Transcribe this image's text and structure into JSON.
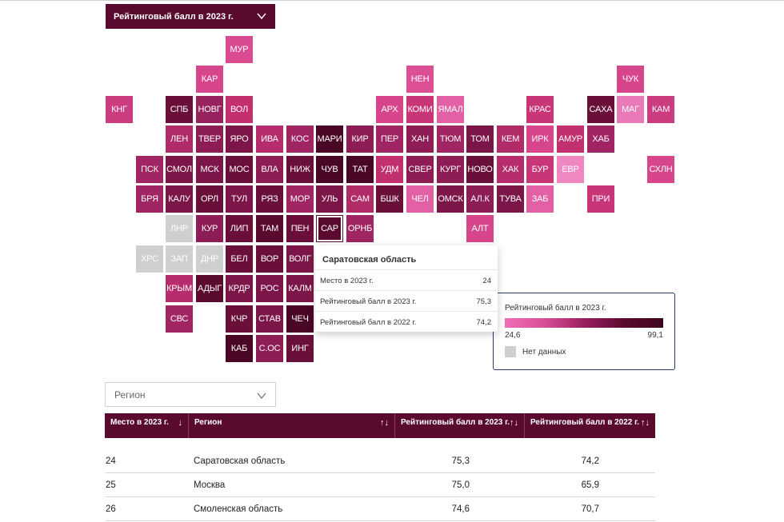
{
  "metric_select": {
    "label": "Рейтинговый балл в 2023 г.",
    "icon": "chevron-down-icon"
  },
  "tiles": [
    {
      "code": "МУР",
      "row": 0,
      "col": 4,
      "color": "#d94a90"
    },
    {
      "code": "КАР",
      "row": 1,
      "col": 3,
      "color": "#d7468b"
    },
    {
      "code": "НЕН",
      "row": 1,
      "col": 10,
      "color": "#dc4f95"
    },
    {
      "code": "ЧУК",
      "row": 1,
      "col": 17,
      "color": "#d7468b"
    },
    {
      "code": "КНГ",
      "row": 2,
      "col": 0,
      "color": "#cc3d80"
    },
    {
      "code": "СПБ",
      "row": 2,
      "col": 2,
      "color": "#6a0f3a"
    },
    {
      "code": "НОВГ",
      "row": 2,
      "col": 3,
      "color": "#98225d"
    },
    {
      "code": "ВОЛ",
      "row": 2,
      "col": 4,
      "color": "#c2306f"
    },
    {
      "code": "АРХ",
      "row": 2,
      "col": 9,
      "color": "#d7468b"
    },
    {
      "code": "КОМИ",
      "row": 2,
      "col": 10,
      "color": "#c83677"
    },
    {
      "code": "ЯМАЛ",
      "row": 2,
      "col": 11,
      "color": "#e261a5"
    },
    {
      "code": "КРАС",
      "row": 2,
      "col": 14,
      "color": "#c83677"
    },
    {
      "code": "САХА",
      "row": 2,
      "col": 16,
      "color": "#6a0f3a"
    },
    {
      "code": "МАГ",
      "row": 2,
      "col": 17,
      "color": "#e97ab7"
    },
    {
      "code": "КАМ",
      "row": 2,
      "col": 18,
      "color": "#cc3d80"
    },
    {
      "code": "ЛЕН",
      "row": 3,
      "col": 2,
      "color": "#b02b68"
    },
    {
      "code": "ТВЕР",
      "row": 3,
      "col": 3,
      "color": "#8e1d55"
    },
    {
      "code": "ЯРО",
      "row": 3,
      "col": 4,
      "color": "#7d1648"
    },
    {
      "code": "ИВА",
      "row": 3,
      "col": 5,
      "color": "#b72c6c"
    },
    {
      "code": "КОС",
      "row": 3,
      "col": 6,
      "color": "#a02562"
    },
    {
      "code": "МАРИ",
      "row": 3,
      "col": 7,
      "color": "#4a0625"
    },
    {
      "code": "КИР",
      "row": 3,
      "col": 8,
      "color": "#8e1d55"
    },
    {
      "code": "ПЕР",
      "row": 3,
      "col": 9,
      "color": "#a02562"
    },
    {
      "code": "ХАН",
      "row": 3,
      "col": 10,
      "color": "#8e1d55"
    },
    {
      "code": "ТЮМ",
      "row": 3,
      "col": 11,
      "color": "#a02562"
    },
    {
      "code": "ТОМ",
      "row": 3,
      "col": 12,
      "color": "#7d1648"
    },
    {
      "code": "КЕМ",
      "row": 3,
      "col": 13,
      "color": "#b02b68"
    },
    {
      "code": "ИРК",
      "row": 3,
      "col": 14,
      "color": "#d7468b"
    },
    {
      "code": "АМУР",
      "row": 3,
      "col": 15,
      "color": "#c2306f"
    },
    {
      "code": "ХАБ",
      "row": 3,
      "col": 16,
      "color": "#a02562"
    },
    {
      "code": "ПСК",
      "row": 4,
      "col": 1,
      "color": "#a02562"
    },
    {
      "code": "СМОЛ",
      "row": 4,
      "col": 2,
      "color": "#7d1648"
    },
    {
      "code": "МСК",
      "row": 4,
      "col": 3,
      "color": "#7d1648"
    },
    {
      "code": "МОС",
      "row": 4,
      "col": 4,
      "color": "#6a0f3a"
    },
    {
      "code": "ВЛА",
      "row": 4,
      "col": 5,
      "color": "#8e1d55"
    },
    {
      "code": "НИЖ",
      "row": 4,
      "col": 6,
      "color": "#6a0f3a"
    },
    {
      "code": "ЧУВ",
      "row": 4,
      "col": 7,
      "color": "#4a0625"
    },
    {
      "code": "ТАТ",
      "row": 4,
      "col": 8,
      "color": "#4a0625"
    },
    {
      "code": "УДМ",
      "row": 4,
      "col": 9,
      "color": "#c2306f"
    },
    {
      "code": "СВЕР",
      "row": 4,
      "col": 10,
      "color": "#8e1d55"
    },
    {
      "code": "КУРГ",
      "row": 4,
      "col": 11,
      "color": "#8e1d55"
    },
    {
      "code": "НОВО",
      "row": 4,
      "col": 12,
      "color": "#6a0f3a"
    },
    {
      "code": "ХАК",
      "row": 4,
      "col": 13,
      "color": "#b72c6c"
    },
    {
      "code": "БУР",
      "row": 4,
      "col": 14,
      "color": "#c83677"
    },
    {
      "code": "ЕВР",
      "row": 4,
      "col": 15,
      "color": "#ef88c1"
    },
    {
      "code": "СХЛН",
      "row": 4,
      "col": 18,
      "color": "#d7468b"
    },
    {
      "code": "БРЯ",
      "row": 5,
      "col": 1,
      "color": "#a02562"
    },
    {
      "code": "КАЛУ",
      "row": 5,
      "col": 2,
      "color": "#7d1648"
    },
    {
      "code": "ОРЛ",
      "row": 5,
      "col": 3,
      "color": "#6a0f3a"
    },
    {
      "code": "ТУЛ",
      "row": 5,
      "col": 4,
      "color": "#7d1648"
    },
    {
      "code": "РЯЗ",
      "row": 5,
      "col": 5,
      "color": "#6a0f3a"
    },
    {
      "code": "МОР",
      "row": 5,
      "col": 6,
      "color": "#a02562"
    },
    {
      "code": "УЛЬ",
      "row": 5,
      "col": 7,
      "color": "#7d1648"
    },
    {
      "code": "САМ",
      "row": 5,
      "col": 8,
      "color": "#b02b68"
    },
    {
      "code": "БШК",
      "row": 5,
      "col": 9,
      "color": "#6a0f3a"
    },
    {
      "code": "ЧЕЛ",
      "row": 5,
      "col": 10,
      "color": "#e261a5"
    },
    {
      "code": "ОМСК",
      "row": 5,
      "col": 11,
      "color": "#7d1648"
    },
    {
      "code": "АЛ.К",
      "row": 5,
      "col": 12,
      "color": "#8e1d55"
    },
    {
      "code": "ТУВА",
      "row": 5,
      "col": 13,
      "color": "#7d1648"
    },
    {
      "code": "ЗАБ",
      "row": 5,
      "col": 14,
      "color": "#e261a5"
    },
    {
      "code": "ПРИ",
      "row": 5,
      "col": 16,
      "color": "#c83677"
    },
    {
      "code": "ЛНР",
      "row": 6,
      "col": 2,
      "color": "#cfcfcf"
    },
    {
      "code": "КУР",
      "row": 6,
      "col": 3,
      "color": "#8e1d55"
    },
    {
      "code": "ЛИП",
      "row": 6,
      "col": 4,
      "color": "#6a0f3a"
    },
    {
      "code": "ТАМ",
      "row": 6,
      "col": 5,
      "color": "#5a0a2e"
    },
    {
      "code": "ПЕН",
      "row": 6,
      "col": 6,
      "color": "#6a0f3a"
    },
    {
      "code": "САР",
      "row": 6,
      "col": 7,
      "color": "#5a0a2e"
    },
    {
      "code": "ОРНБ",
      "row": 6,
      "col": 8,
      "color": "#a02562"
    },
    {
      "code": "АЛТ",
      "row": 6,
      "col": 12,
      "color": "#d7468b"
    },
    {
      "code": "ХРС",
      "row": 7,
      "col": 1,
      "color": "#cfcfcf"
    },
    {
      "code": "ЗАП",
      "row": 7,
      "col": 2,
      "color": "#cfcfcf"
    },
    {
      "code": "ДНР",
      "row": 7,
      "col": 3,
      "color": "#cfcfcf"
    },
    {
      "code": "БЕЛ",
      "row": 7,
      "col": 4,
      "color": "#6a0f3a"
    },
    {
      "code": "ВОР",
      "row": 7,
      "col": 5,
      "color": "#6a0f3a"
    },
    {
      "code": "ВОЛГ",
      "row": 7,
      "col": 6,
      "color": "#7d1648"
    },
    {
      "code": "КРЫМ",
      "row": 8,
      "col": 2,
      "color": "#b72c6c"
    },
    {
      "code": "АДЫГ",
      "row": 8,
      "col": 3,
      "color": "#5a0a2e"
    },
    {
      "code": "КРДР",
      "row": 8,
      "col": 4,
      "color": "#7d1648"
    },
    {
      "code": "РОС",
      "row": 8,
      "col": 5,
      "color": "#7d1648"
    },
    {
      "code": "КАЛМ",
      "row": 8,
      "col": 6,
      "color": "#7d1648"
    },
    {
      "code": "СВС",
      "row": 9,
      "col": 2,
      "color": "#a02562"
    },
    {
      "code": "КЧР",
      "row": 9,
      "col": 4,
      "color": "#6a0f3a"
    },
    {
      "code": "СТАВ",
      "row": 9,
      "col": 5,
      "color": "#7d1648"
    },
    {
      "code": "ЧЕЧ",
      "row": 9,
      "col": 6,
      "color": "#4a0625"
    },
    {
      "code": "КАБ",
      "row": 10,
      "col": 4,
      "color": "#4a0625"
    },
    {
      "code": "С.ОС",
      "row": 10,
      "col": 5,
      "color": "#8e1d55"
    },
    {
      "code": "ИНГ",
      "row": 10,
      "col": 6,
      "color": "#6a0f3a"
    }
  ],
  "selected_tile": "САР",
  "tooltip": {
    "title": "Саратовская область",
    "rows": [
      {
        "label": "Место в 2023 г.",
        "value": "24"
      },
      {
        "label": "Рейтинговый балл в 2023 г.",
        "value": "75,3"
      },
      {
        "label": "Рейтинговый балл в 2022 г.",
        "value": "74,2"
      }
    ]
  },
  "legend": {
    "title": "Рейтинговый балл в 2023 г.",
    "min": "24,6",
    "max": "99,1",
    "no_data": "Нет данных",
    "colors": {
      "low": "#ef6fb7",
      "high": "#3d0520",
      "no_data": "#cfcfcf"
    }
  },
  "region_select": {
    "placeholder": "Регион",
    "icon": "chevron-down-icon"
  },
  "table": {
    "columns": [
      {
        "label": "Место в 2023 г.",
        "sort_icon": "↓"
      },
      {
        "label": "Регион",
        "sort_icon": "↑↓"
      },
      {
        "label": "Рейтинговый балл в 2023 г.",
        "sort_icon": "↑↓"
      },
      {
        "label": "Рейтинговый балл в 2022 г.",
        "sort_icon": "↑↓"
      }
    ],
    "rows": [
      {
        "place": "24",
        "region": "Саратовская область",
        "score_2023": "75,3",
        "score_2022": "74,2"
      },
      {
        "place": "25",
        "region": "Москва",
        "score_2023": "75,0",
        "score_2022": "65,9"
      },
      {
        "place": "26",
        "region": "Смоленская область",
        "score_2023": "74,6",
        "score_2022": "70,7"
      }
    ]
  },
  "colors": {
    "header_bg": "#5a0a2e",
    "accent": "#d94a90"
  }
}
